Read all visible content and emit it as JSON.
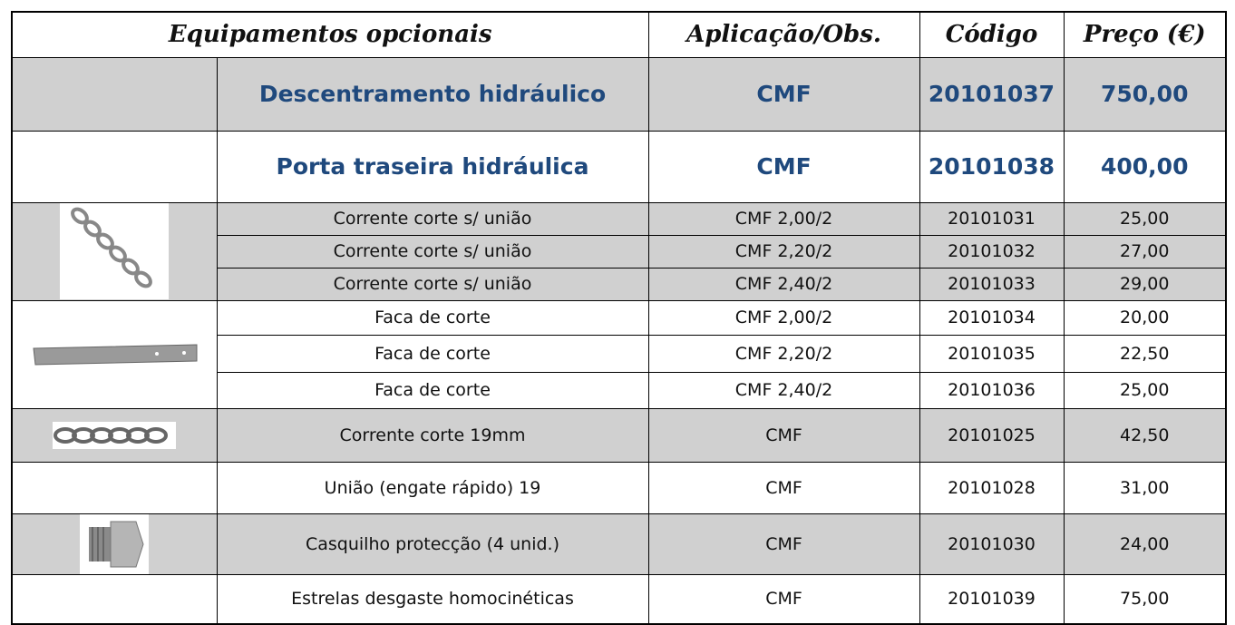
{
  "table": {
    "header": [
      "Equipamentos opcionais",
      "Aplicação/Obs.",
      "Código",
      "Preço (€)"
    ],
    "rows": [
      [
        "Descentramento hidráulico",
        "CMF",
        "20101037",
        "750,00"
      ],
      [
        "Porta traseira hidráulica",
        "CMF",
        "20101038",
        "400,00"
      ],
      [
        "Corrente corte s/ união",
        "CMF 2,00/2",
        "20101031",
        "25,00"
      ],
      [
        "Corrente corte s/ união",
        "CMF 2,20/2",
        "20101032",
        "27,00"
      ],
      [
        "Corrente corte s/ união",
        "CMF 2,40/2",
        "20101033",
        "29,00"
      ],
      [
        "Faca de corte",
        "CMF 2,00/2",
        "20101034",
        "20,00"
      ],
      [
        "Faca de corte",
        "CMF 2,20/2",
        "20101035",
        "22,50"
      ],
      [
        "Faca de corte",
        "CMF 2,40/2",
        "20101036",
        "25,00"
      ],
      [
        "Corrente corte 19mm",
        "CMF",
        "20101025",
        "42,50"
      ],
      [
        "União (engate rápido) 19",
        "CMF",
        "20101028",
        "31,00"
      ],
      [
        "Casquilho protecção (4 unid.)",
        "CMF",
        "20101030",
        "24,00"
      ],
      [
        "Estrelas desgaste homocinéticas",
        "CMF",
        "20101039",
        "75,00"
      ]
    ]
  }
}
